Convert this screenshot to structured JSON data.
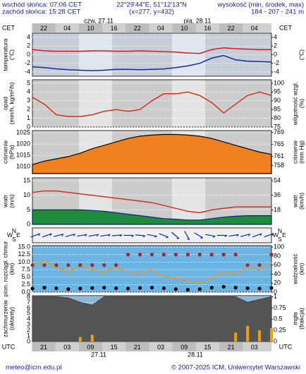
{
  "header": {
    "sunrise": "wschód słońca: 07:06 CET",
    "sunset": "zachód słońca: 15:28 CET",
    "coords": "22°29'44\"E, 51°12'13\"N",
    "grid": "(x=277, y=432)",
    "height_title": "wysokość (min, środek, max)",
    "height_values": "184 - 207 - 241 m"
  },
  "time_axis": {
    "top_zone": "CET",
    "bottom_zone": "UTC",
    "top_dates": [
      "czw, 27.11",
      "pią, 28.11"
    ],
    "bottom_dates": [
      "27.11",
      "28.11"
    ],
    "cet_hours": [
      "22",
      "04",
      "10",
      "16",
      "22",
      "04",
      "10",
      "16",
      "22",
      "04"
    ],
    "utc_hours": [
      "21",
      "03",
      "09",
      "15",
      "21",
      "03",
      "09",
      "15",
      "21",
      "03"
    ]
  },
  "compass": [
    "N",
    "E",
    "S",
    "W"
  ],
  "footer": {
    "contact": "meteo@icm.edu.pl",
    "copyright": "© 2007-2025 ICM, Uniwersytet Warszawski"
  },
  "chart_data": [
    {
      "type": "line",
      "ylabel": [
        "temperatura",
        "(°C)"
      ],
      "y2label": [
        "(°C)"
      ],
      "ylim": [
        -5,
        5
      ],
      "yticks": [
        4,
        2,
        0,
        -2,
        -4
      ],
      "y2lim": [
        -5,
        5
      ],
      "y2ticks": [
        4,
        2,
        0,
        -2,
        -4
      ],
      "series": [
        {
          "kind": "line",
          "color": "#e8141e",
          "values": [
            1.2,
            0.9,
            0.8,
            0.8,
            0.8,
            0.9,
            0.9,
            0.8,
            0.8,
            0.9,
            0.8,
            0.7,
            0.6,
            0.4,
            0.3,
            1.2,
            1.6,
            1.4,
            1.3,
            1.2,
            1.2
          ]
        },
        {
          "kind": "line",
          "color": "#1428b4",
          "values": [
            -2.8,
            -3.0,
            -3.3,
            -3.5,
            -3.6,
            -3.7,
            -3.6,
            -3.4,
            -3.4,
            -3.5,
            -3.4,
            -3.3,
            -3.0,
            -2.6,
            -2.0,
            -0.8,
            -0.2,
            -1.2,
            -1.5,
            -1.6,
            -1.7
          ]
        }
      ]
    },
    {
      "type": "line",
      "ylabel": [
        "opad",
        "(mm/h, kg/m²/h)"
      ],
      "y2label": [
        "wilgotność wzgl.",
        "(%)"
      ],
      "ylim": [
        0,
        5.4
      ],
      "yticks": [
        5,
        4,
        3,
        2,
        1,
        0
      ],
      "y2lim": [
        75,
        102
      ],
      "y2ticks": [
        100,
        95,
        90,
        85,
        80,
        75
      ],
      "series": [
        {
          "kind": "line",
          "axis": "y2",
          "color": "#d2321e",
          "values": [
            92,
            88,
            82,
            81,
            81,
            82,
            84,
            85,
            84,
            85,
            90,
            94,
            94,
            95,
            93,
            89,
            83,
            88,
            93,
            95,
            93
          ]
        }
      ]
    },
    {
      "type": "area",
      "ylabel": [
        "ciśnienie",
        "(hPa)"
      ],
      "y2label": [
        "ciśnienie",
        "(mm Hg)"
      ],
      "ylim": [
        1007,
        1026
      ],
      "yticks": [
        1025,
        1020,
        1015,
        1010
      ],
      "y2lim": [
        755.3,
        769.6
      ],
      "y2ticks": [
        769,
        765,
        761,
        758
      ],
      "series": [
        {
          "kind": "area",
          "color": "#000000",
          "fill": "#f0801e",
          "values": [
            1011,
            1012.5,
            1013.5,
            1014.5,
            1016,
            1018,
            1019.5,
            1021,
            1022.5,
            1023.5,
            1024,
            1024.3,
            1024.3,
            1024,
            1023.5,
            1022.5,
            1021,
            1019.5,
            1018,
            1016.5,
            1015.5
          ]
        }
      ]
    },
    {
      "type": "line",
      "ylabel": [
        "wiatr",
        "(m/s)"
      ],
      "y2label": [
        "wiatr",
        "(km/h)"
      ],
      "ylim": [
        0,
        16
      ],
      "yticks": [
        15,
        10,
        5,
        0
      ],
      "y2lim": [
        0,
        57.6
      ],
      "y2ticks": [
        54,
        36,
        18
      ],
      "series": [
        {
          "kind": "area",
          "color": "#0a1e8c",
          "fill": "#1e8c3c",
          "values": [
            5,
            5,
            5,
            5,
            5,
            4.8,
            4.5,
            4,
            3.5,
            3,
            2.5,
            2,
            1.8,
            1.5,
            1.5,
            2,
            2.5,
            2.8,
            3,
            3,
            3
          ]
        },
        {
          "kind": "line",
          "color": "#d2321e",
          "values": [
            11,
            11.5,
            11.5,
            11,
            10.5,
            10,
            9.5,
            9,
            8.5,
            8,
            7.5,
            6.5,
            5.5,
            4.5,
            4,
            5,
            5.5,
            6,
            6,
            6,
            6
          ]
        }
      ]
    },
    {
      "type": "wind_direction",
      "series": [
        {
          "kind": "arrows",
          "color": "#1428b4",
          "values": [
            70,
            70,
            75,
            75,
            80,
            80,
            80,
            85,
            90,
            95,
            100,
            110,
            130,
            150,
            120,
            100,
            90,
            80,
            75,
            70,
            70
          ]
        }
      ]
    },
    {
      "type": "line",
      "ylabel": [
        "pion. rozciągł. chmur",
        "(km)"
      ],
      "y2label": [
        "widzialność",
        "(km)"
      ],
      "ylim": [
        0,
        15.5
      ],
      "yticks": [
        {
          "value": 15,
          "label": "15.0"
        },
        {
          "value": 12.5,
          "label": "12.5"
        },
        {
          "value": 10,
          "label": "10.0"
        },
        {
          "value": 7.5,
          "label": "7.5"
        },
        {
          "value": 5,
          "label": "5.0"
        },
        {
          "value": 2.5,
          "label": "2.5"
        },
        {
          "value": 0,
          "label": "0.0"
        }
      ],
      "y2lim": [
        0,
        103.3
      ],
      "y2ticks": [
        100,
        80,
        60,
        40,
        20,
        0
      ],
      "series": [
        {
          "kind": "line",
          "axis": "y2",
          "color": "#f0961e",
          "values": [
            60,
            70,
            55,
            45,
            60,
            50,
            45,
            55,
            45,
            40,
            50,
            35,
            30,
            25,
            20,
            30,
            45,
            40,
            55,
            50,
            65
          ]
        },
        {
          "kind": "dots",
          "color": "#a02828",
          "values": [
            9,
            9,
            9,
            9,
            9,
            9,
            9,
            9,
            12.5,
            12.5,
            12.5,
            12.5,
            12.5,
            12.5,
            12.5,
            12.5,
            12.5,
            12.5,
            9,
            9,
            12.5
          ]
        },
        {
          "kind": "dots",
          "color": "#000000",
          "values": [
            1.2,
            1.5,
            1.3,
            1.0,
            1.2,
            1.4,
            1.5,
            1.3,
            1.2,
            1.4,
            1.5,
            1.3,
            1.0,
            0.8,
            1.0,
            1.5,
            1.8,
            1.5,
            1.3,
            1.2,
            1.4
          ]
        }
      ]
    },
    {
      "type": "area",
      "ylabel": [
        "zachmurzenie",
        "(oktanty)"
      ],
      "y2label": [
        "mgła",
        "(frakcja)"
      ],
      "ylim": [
        0,
        8.2
      ],
      "yticks": [
        8,
        7,
        6,
        5,
        4,
        3,
        2,
        1,
        0
      ],
      "y2lim": [
        0,
        1.025
      ],
      "y2ticks": [
        1,
        0.75,
        0.5,
        0.25,
        0
      ],
      "series": [
        {
          "kind": "area",
          "color": "#444444",
          "fill": "#555555",
          "values": [
            8,
            8,
            8,
            7.8,
            7,
            6.5,
            8,
            8,
            8,
            8,
            8,
            8,
            8,
            8,
            8,
            8,
            8,
            8,
            7,
            7.5,
            8
          ]
        },
        {
          "kind": "bars",
          "axis": "y2",
          "color": "#f0a000",
          "values": [
            0,
            0,
            0,
            0,
            0.1,
            0.15,
            0,
            0,
            0,
            0,
            0,
            0,
            0,
            0,
            0,
            0,
            0,
            0.2,
            0.35,
            0.25,
            0.3
          ]
        }
      ]
    }
  ]
}
